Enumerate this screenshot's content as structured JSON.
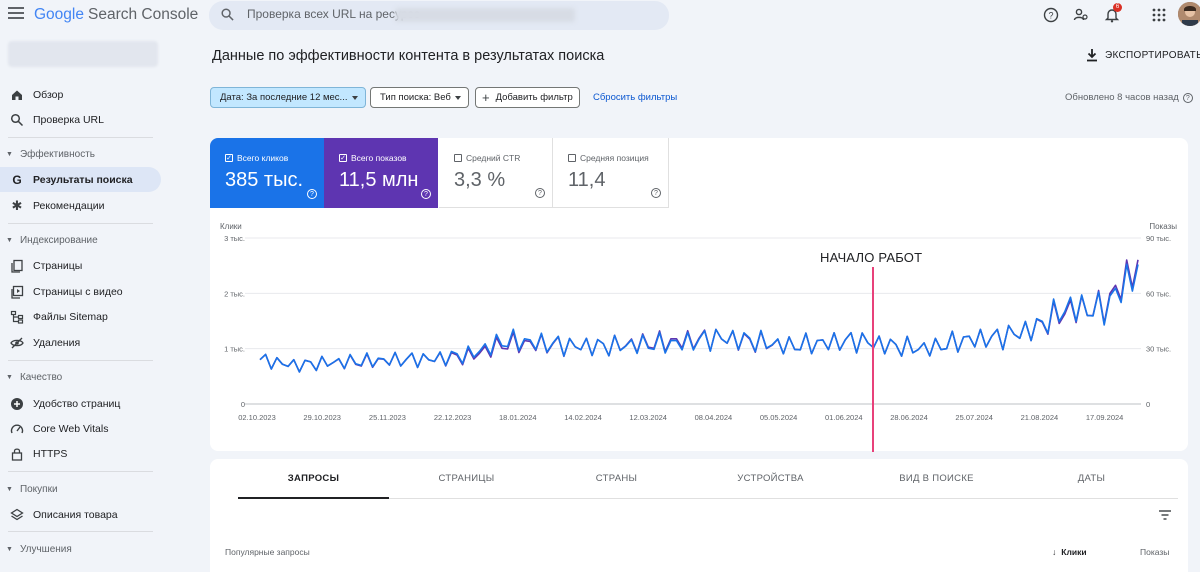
{
  "app": {
    "logo_google": "Google",
    "logo_product": "Search Console"
  },
  "search": {
    "placeholder": "Проверка всех URL на ресурсе"
  },
  "notifications": {
    "count": "6"
  },
  "sidebar": {
    "items": [
      {
        "label": "Обзор"
      },
      {
        "label": "Проверка URL"
      },
      {
        "section": "Эффективность"
      },
      {
        "label": "Результаты поиска"
      },
      {
        "label": "Рекомендации"
      },
      {
        "section": "Индексирование"
      },
      {
        "label": "Страницы"
      },
      {
        "label": "Страницы с видео"
      },
      {
        "label": "Файлы Sitemap"
      },
      {
        "label": "Удаления"
      },
      {
        "section": "Качество"
      },
      {
        "label": "Удобство страниц"
      },
      {
        "label": "Core Web Vitals"
      },
      {
        "label": "HTTPS"
      },
      {
        "section": "Покупки"
      },
      {
        "label": "Описания товара"
      },
      {
        "section": "Улучшения"
      }
    ]
  },
  "header": {
    "title": "Данные по эффективности контента в результатах поиска",
    "export_label": "ЭКСПОРТИРОВАТЬ"
  },
  "filters": {
    "date": "Дата: За последние 12 мес...",
    "type": "Тип поиска: Веб",
    "add": "Добавить фильтр",
    "reset": "Сбросить фильтры",
    "updated": "Обновлено 8 часов назад"
  },
  "metrics": [
    {
      "label": "Всего кликов",
      "value": "385 тыс.",
      "checked": true
    },
    {
      "label": "Всего показов",
      "value": "11,5 млн",
      "checked": true
    },
    {
      "label": "Средний CTR",
      "value": "3,3 %",
      "checked": false
    },
    {
      "label": "Средняя позиция",
      "value": "11,4",
      "checked": false
    }
  ],
  "annotation": {
    "label": "НАЧАЛО РАБОТ"
  },
  "colors": {
    "clicks": "#1a73e8",
    "impressions": "#5e35b1",
    "marker": "#e8417a"
  },
  "chart_data": {
    "type": "line",
    "left_axis_label": "Клики",
    "right_axis_label": "Показы",
    "left_ticks": [
      "3 тыс.",
      "2 тыс.",
      "1 тыс.",
      "0"
    ],
    "right_ticks": [
      "90 тыс.",
      "60 тыс.",
      "30 тыс.",
      "0"
    ],
    "ylim_left": [
      0,
      3000
    ],
    "ylim_right": [
      0,
      90000
    ],
    "x_ticks": [
      "02.10.2023",
      "29.10.2023",
      "25.11.2023",
      "22.12.2023",
      "18.01.2024",
      "14.02.2024",
      "12.03.2024",
      "08.04.2024",
      "05.05.2024",
      "01.06.2024",
      "28.06.2024",
      "25.07.2024",
      "21.08.2024",
      "17.09.2024"
    ],
    "series": [
      {
        "name": "Всего кликов",
        "values": [
          800,
          700,
          750,
          780,
          800,
          820,
          900,
          1150,
          1100,
          1050,
          1050,
          1080,
          1100,
          1200,
          1150,
          1050,
          1100,
          1150,
          1050,
          1000,
          1150,
          1200,
          1350,
          1750,
          1700,
          2450
        ]
      },
      {
        "name": "Всего показов",
        "values": [
          24000,
          21000,
          22500,
          23000,
          24000,
          24500,
          26000,
          33000,
          32500,
          31500,
          31500,
          33000,
          34000,
          36000,
          34000,
          31500,
          33000,
          34500,
          31500,
          30000,
          34500,
          36000,
          40500,
          51000,
          52000,
          76000
        ]
      }
    ]
  },
  "table": {
    "tabs": [
      "ЗАПРОСЫ",
      "СТРАНИЦЫ",
      "СТРАНЫ",
      "УСТРОЙСТВА",
      "ВИД В ПОИСКЕ",
      "ДАТЫ"
    ],
    "col_query": "Популярные запросы",
    "col_clicks": "Клики",
    "col_impressions": "Показы"
  }
}
